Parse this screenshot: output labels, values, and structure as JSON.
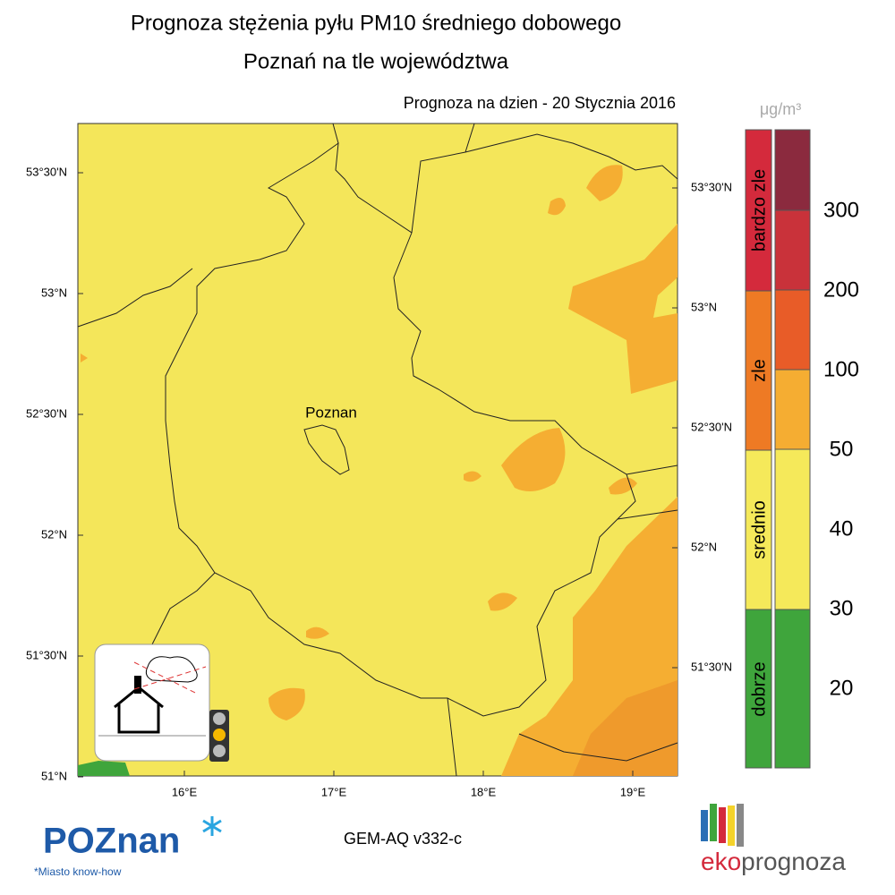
{
  "header": {
    "title": "Prognoza stężenia pyłu PM10 średniego dobowego",
    "subtitle": "Poznań na tle województwa",
    "date": "Prognoza na dzien -  20 Stycznia 2016"
  },
  "map": {
    "city": "Poznan",
    "lat_left": [
      "53°30'N",
      "53°N",
      "52°30'N",
      "52°N",
      "51°30'N",
      "51°N"
    ],
    "lat_right": [
      "53°30'N",
      "53°N",
      "52°30'N",
      "52°N",
      "51°30'N"
    ],
    "lon": [
      "16°E",
      "17°E",
      "18°E",
      "19°E"
    ]
  },
  "legend": {
    "unit": "μg/m³",
    "categories": [
      "bardzo zle",
      "zle",
      "srednio",
      "dobrze"
    ],
    "levels": [
      300,
      200,
      100,
      50,
      40,
      30,
      20
    ]
  },
  "footer": {
    "model": "GEM-AQ v332-c",
    "city_logo": "POZnan",
    "slogan": "*Miasto know-how",
    "brand_eko": "eko",
    "brand_prognoza": "prognoza"
  }
}
